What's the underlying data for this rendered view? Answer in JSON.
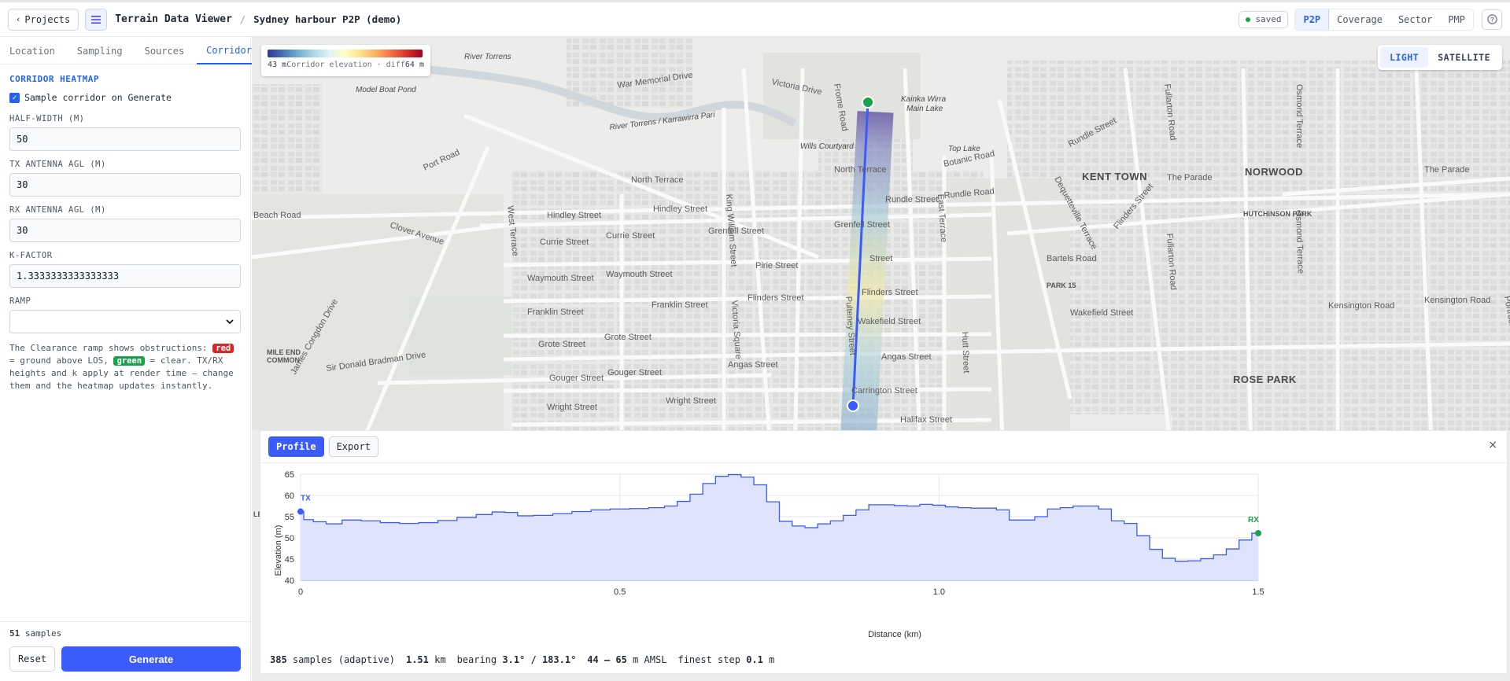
{
  "topbar": {
    "projects_label": "Projects",
    "app_title": "Terrain Data Viewer",
    "separator": "/",
    "project_name": "Sydney harbour P2P (demo)",
    "saved_label": "saved",
    "modes": [
      "P2P",
      "Coverage",
      "Sector",
      "PMP"
    ],
    "active_mode": "P2P"
  },
  "sidebar": {
    "tabs": [
      "Location",
      "Sampling",
      "Sources",
      "Corridor"
    ],
    "active_tab": "Corridor",
    "section_title": "CORRIDOR HEATMAP",
    "checkbox_label": "Sample corridor on Generate",
    "checkbox_checked": true,
    "fields": {
      "half_width_label": "HALF-WIDTH (M)",
      "half_width_value": "50",
      "tx_agl_label": "TX ANTENNA AGL (M)",
      "tx_agl_value": "30",
      "rx_agl_label": "RX ANTENNA AGL (M)",
      "rx_agl_value": "30",
      "k_factor_label": "K-FACTOR",
      "k_factor_value": "1.3333333333333333",
      "ramp_label": "RAMP",
      "ramp_value": ""
    },
    "help": {
      "p1": "The Clearance ramp shows obstructions: ",
      "red": "red",
      "p2": " = ground above LOS, ",
      "green": "green",
      "p3": " = clear. TX/RX heights and k apply at render time — change them and the heatmap updates instantly."
    },
    "footer": {
      "samples_number": "51",
      "samples_word": "samples",
      "reset_label": "Reset",
      "generate_label": "Generate"
    }
  },
  "map": {
    "legend": {
      "min": "43 m",
      "label": "Corridor elevation · diff",
      "max": "64 m"
    },
    "basemaps": [
      "LIGHT",
      "SATELLITE"
    ],
    "active_basemap": "LIGHT",
    "labels": {
      "river_torrens": "River Torrens",
      "model_boat_pond": "Model Boat Pond",
      "war_memorial": "War Memorial Drive",
      "victoria_drive": "Victoria Drive",
      "frome_road": "Frome Road",
      "kainka": "Kainka Wirra",
      "main_lake": "Main Lake",
      "karrawirra": "River Torrens / Karrawirra Pari",
      "wills_courtyard": "Wills Courtyard",
      "top_lake": "Top Lake",
      "botanic_road": "Botanic Road",
      "port_road": "Port Road",
      "north_terrace": "North Terrace",
      "north_terrace2": "North Terrace",
      "kent_town": "KENT TOWN",
      "norwood": "NORWOOD",
      "the_parade": "The Parade",
      "the_parade2": "The Parade",
      "rundle_street": "Rundle Street",
      "rundle_road": "Rundle Road",
      "rundle_street2": "Rundle Street",
      "hindley_street": "Hindley Street",
      "hindley_street2": "Hindley Street",
      "beach_road": "Beach Road",
      "clover_avenue": "Clover Avenue",
      "currie_street": "Currie Street",
      "currie_street2": "Currie Street",
      "grenfell_street": "Grenfell Street",
      "grenfell_street2": "Grenfell Street",
      "pirie_street": "Pirie Street",
      "pirie_street2": "Street",
      "bartels_road": "Bartels Road",
      "waymouth_street": "Waymouth Street",
      "waymouth_street2": "Waymouth Street",
      "franklin_street": "Franklin Street",
      "franklin_street2": "Franklin Street",
      "flinders_street": "Flinders Street",
      "flinders_street2": "Flinders Street",
      "park15": "PARK 15",
      "wakefield_street": "Wakefield Street",
      "wakefield_street2": "Wakefield Street",
      "kensington_road": "Kensington Road",
      "kensington_road2": "Kensington Road",
      "hutchinson_park": "HUTCHINSON PARK",
      "grote_street": "Grote Street",
      "grote_street2": "Grote Street",
      "mile_end_common": "MILE END",
      "mile_end_common2": "COMMON",
      "sir_donald": "Sir Donald Bradman Drive",
      "angas_street": "Angas Street",
      "angas_street2": "Angas Street",
      "gouger_street": "Gouger Street",
      "gouger_street2": "Gouger Street",
      "wright_street": "Wright Street",
      "wright_street2": "Wright Street",
      "carrington_street": "Carrington Street",
      "halifax_street": "Halifax Street",
      "rose_park": "ROSE PARK",
      "west_terrace": "West Terrace",
      "king_william": "King William Street",
      "victoria_square": "Victoria Square",
      "east_terrace": "East Terrace",
      "hutt_street": "Hutt Street",
      "pulteney_street": "Pulteney Street",
      "fullarton_road": "Fullarton Road",
      "fullarton_road2": "Fullarton Road",
      "osmond_terrace": "Osmond Terrace",
      "osmond_terrace2": "Osmond Terrace",
      "flinders_street3": "Flinders Street",
      "dequetteville": "Dequetteville Terrace",
      "james_congdon": "James Congdon Drive",
      "portrush_road": "Portrush Road",
      "le": "LE"
    }
  },
  "profile": {
    "tabs": [
      "Profile",
      "Export"
    ],
    "active_tab": "Profile",
    "close_icon": "×",
    "stats": {
      "samples_num": "385",
      "samples_txt": "samples (adaptive)",
      "dist_num": "1.51",
      "dist_unit": "km",
      "bearing_txt": "bearing",
      "bearing_val": "3.1° / 183.1°",
      "range_val": "44 – 65",
      "range_unit": "m AMSL",
      "step_txt": "finest step",
      "step_val": "0.1",
      "step_unit": "m"
    }
  },
  "chart_data": {
    "type": "area",
    "title": "",
    "xlabel": "Distance (km)",
    "ylabel": "Elevation (m)",
    "xlim": [
      0,
      1.5
    ],
    "ylim": [
      40,
      65
    ],
    "xticks": [
      0,
      0.5,
      1.0,
      1.5
    ],
    "xtick_labels": [
      "0",
      "0.5",
      "1.0",
      "1.5"
    ],
    "yticks": [
      40,
      45,
      50,
      55,
      60,
      65
    ],
    "grid": true,
    "markers": [
      {
        "label": "TX",
        "x": 0,
        "y": 56.2,
        "color": "#3b5bfd"
      },
      {
        "label": "RX",
        "x": 1.5,
        "y": 51.1,
        "color": "#16a34a"
      }
    ],
    "series": [
      {
        "x": [
          0,
          0.01,
          0.03,
          0.05,
          0.08,
          0.11,
          0.14,
          0.17,
          0.2,
          0.23,
          0.26,
          0.29,
          0.31,
          0.33,
          0.35,
          0.38,
          0.41,
          0.44,
          0.47,
          0.5,
          0.53,
          0.56,
          0.58,
          0.6,
          0.62,
          0.64,
          0.66,
          0.68,
          0.7,
          0.72,
          0.74,
          0.76,
          0.78,
          0.8,
          0.82,
          0.84,
          0.86,
          0.88,
          0.9,
          0.92,
          0.94,
          0.96,
          0.98,
          1.0,
          1.02,
          1.04,
          1.06,
          1.08,
          1.1,
          1.12,
          1.14,
          1.16,
          1.18,
          1.2,
          1.22,
          1.24,
          1.26,
          1.28,
          1.3,
          1.32,
          1.34,
          1.36,
          1.38,
          1.4,
          1.42,
          1.44,
          1.46,
          1.48,
          1.5
        ],
        "y": [
          56.2,
          54.3,
          53.8,
          53.3,
          54.2,
          54.0,
          53.6,
          53.4,
          53.6,
          54.1,
          54.8,
          55.5,
          56.1,
          56.0,
          55.2,
          55.3,
          55.7,
          56.2,
          56.6,
          56.8,
          56.9,
          57.1,
          57.5,
          58.6,
          60.3,
          62.8,
          64.5,
          64.9,
          64.3,
          62.5,
          58.5,
          53.9,
          52.8,
          52.4,
          53.3,
          54.0,
          55.3,
          56.6,
          57.8,
          57.8,
          57.6,
          57.5,
          57.9,
          57.7,
          57.3,
          57.1,
          57.0,
          57.0,
          56.6,
          54.2,
          54.2,
          55.0,
          56.8,
          57.1,
          57.5,
          57.5,
          56.8,
          54.0,
          53.4,
          50.5,
          47.3,
          45.2,
          44.5,
          44.6,
          45.1,
          46.0,
          47.4,
          49.5,
          51.1
        ]
      }
    ]
  }
}
